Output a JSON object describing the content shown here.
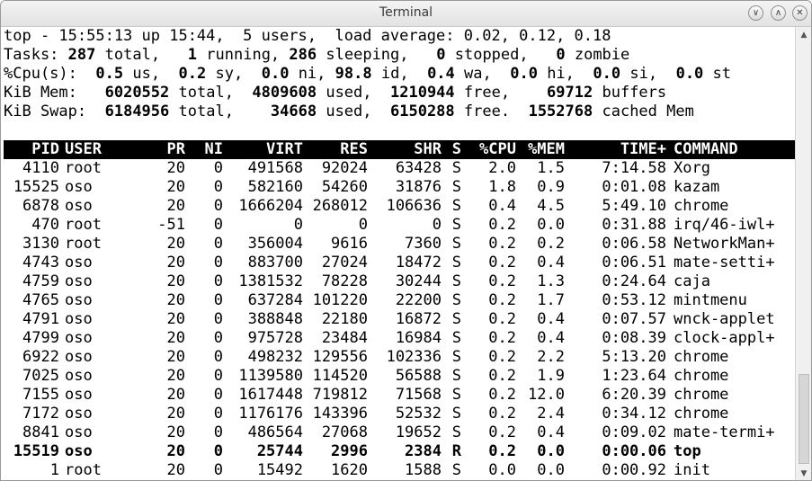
{
  "window": {
    "title": "Terminal"
  },
  "summary": {
    "line1": "top - 15:55:13 up 15:44,  5 users,  load average: 0.02, 0.12, 0.18",
    "tasks": {
      "label": "Tasks:",
      "total": "287",
      "total_label": "total,",
      "running": "1",
      "running_label": "running,",
      "sleeping": "286",
      "sleeping_label": "sleeping,",
      "stopped": "0",
      "stopped_label": "stopped,",
      "zombie": "0",
      "zombie_label": "zombie"
    },
    "cpu": {
      "label": "%Cpu(s):",
      "us": "0.5",
      "us_label": "us,",
      "sy": "0.2",
      "sy_label": "sy,",
      "ni": "0.0",
      "ni_label": "ni,",
      "id": "98.8",
      "id_label": "id,",
      "wa": "0.4",
      "wa_label": "wa,",
      "hi": "0.0",
      "hi_label": "hi,",
      "si": "0.0",
      "si_label": "si,",
      "st": "0.0",
      "st_label": "st"
    },
    "mem": {
      "label": "KiB Mem:",
      "total": "6020552",
      "total_label": "total,",
      "used": "4809608",
      "used_label": "used,",
      "free": "1210944",
      "free_label": "free,",
      "buffers": "69712",
      "buffers_label": "buffers"
    },
    "swap": {
      "label": "KiB Swap:",
      "total": "6184956",
      "total_label": "total,",
      "used": "34668",
      "used_label": "used,",
      "free": "6150288",
      "free_label": "free.",
      "cached": "1552768",
      "cached_label": "cached Mem"
    }
  },
  "table": {
    "headers": {
      "pid": "PID",
      "user": "USER",
      "pr": "PR",
      "ni": "NI",
      "virt": "VIRT",
      "res": "RES",
      "shr": "SHR",
      "s": "S",
      "cpu": "%CPU",
      "mem": "%MEM",
      "time": "TIME+",
      "command": "COMMAND"
    },
    "rows": [
      {
        "pid": "4110",
        "user": "root",
        "pr": "20",
        "ni": "0",
        "virt": "491568",
        "res": "92024",
        "shr": "63428",
        "s": "S",
        "cpu": "2.0",
        "mem": "1.5",
        "time": "7:14.58",
        "command": "Xorg"
      },
      {
        "pid": "15525",
        "user": "oso",
        "pr": "20",
        "ni": "0",
        "virt": "582160",
        "res": "54260",
        "shr": "31876",
        "s": "S",
        "cpu": "1.8",
        "mem": "0.9",
        "time": "0:01.08",
        "command": "kazam"
      },
      {
        "pid": "6878",
        "user": "oso",
        "pr": "20",
        "ni": "0",
        "virt": "1666204",
        "res": "268012",
        "shr": "106636",
        "s": "S",
        "cpu": "0.4",
        "mem": "4.5",
        "time": "5:49.10",
        "command": "chrome"
      },
      {
        "pid": "470",
        "user": "root",
        "pr": "-51",
        "ni": "0",
        "virt": "0",
        "res": "0",
        "shr": "0",
        "s": "S",
        "cpu": "0.2",
        "mem": "0.0",
        "time": "0:31.88",
        "command": "irq/46-iwl+"
      },
      {
        "pid": "3130",
        "user": "root",
        "pr": "20",
        "ni": "0",
        "virt": "356004",
        "res": "9616",
        "shr": "7360",
        "s": "S",
        "cpu": "0.2",
        "mem": "0.2",
        "time": "0:06.58",
        "command": "NetworkMan+"
      },
      {
        "pid": "4743",
        "user": "oso",
        "pr": "20",
        "ni": "0",
        "virt": "883700",
        "res": "27024",
        "shr": "18472",
        "s": "S",
        "cpu": "0.2",
        "mem": "0.4",
        "time": "0:06.51",
        "command": "mate-setti+"
      },
      {
        "pid": "4759",
        "user": "oso",
        "pr": "20",
        "ni": "0",
        "virt": "1381532",
        "res": "78228",
        "shr": "30244",
        "s": "S",
        "cpu": "0.2",
        "mem": "1.3",
        "time": "0:24.64",
        "command": "caja"
      },
      {
        "pid": "4765",
        "user": "oso",
        "pr": "20",
        "ni": "0",
        "virt": "637284",
        "res": "101220",
        "shr": "22200",
        "s": "S",
        "cpu": "0.2",
        "mem": "1.7",
        "time": "0:53.12",
        "command": "mintmenu"
      },
      {
        "pid": "4791",
        "user": "oso",
        "pr": "20",
        "ni": "0",
        "virt": "388848",
        "res": "22180",
        "shr": "16872",
        "s": "S",
        "cpu": "0.2",
        "mem": "0.4",
        "time": "0:07.57",
        "command": "wnck-applet"
      },
      {
        "pid": "4799",
        "user": "oso",
        "pr": "20",
        "ni": "0",
        "virt": "975728",
        "res": "23484",
        "shr": "16984",
        "s": "S",
        "cpu": "0.2",
        "mem": "0.4",
        "time": "0:08.39",
        "command": "clock-appl+"
      },
      {
        "pid": "6922",
        "user": "oso",
        "pr": "20",
        "ni": "0",
        "virt": "498232",
        "res": "129556",
        "shr": "102336",
        "s": "S",
        "cpu": "0.2",
        "mem": "2.2",
        "time": "5:13.20",
        "command": "chrome"
      },
      {
        "pid": "7025",
        "user": "oso",
        "pr": "20",
        "ni": "0",
        "virt": "1139580",
        "res": "114520",
        "shr": "56588",
        "s": "S",
        "cpu": "0.2",
        "mem": "1.9",
        "time": "1:23.64",
        "command": "chrome"
      },
      {
        "pid": "7155",
        "user": "oso",
        "pr": "20",
        "ni": "0",
        "virt": "1617448",
        "res": "719812",
        "shr": "71568",
        "s": "S",
        "cpu": "0.2",
        "mem": "12.0",
        "time": "6:20.39",
        "command": "chrome"
      },
      {
        "pid": "7172",
        "user": "oso",
        "pr": "20",
        "ni": "0",
        "virt": "1176176",
        "res": "143396",
        "shr": "52532",
        "s": "S",
        "cpu": "0.2",
        "mem": "2.4",
        "time": "0:34.12",
        "command": "chrome"
      },
      {
        "pid": "8841",
        "user": "oso",
        "pr": "20",
        "ni": "0",
        "virt": "486564",
        "res": "27068",
        "shr": "19652",
        "s": "S",
        "cpu": "0.2",
        "mem": "0.4",
        "time": "0:09.02",
        "command": "mate-termi+"
      },
      {
        "pid": "15519",
        "user": "oso",
        "pr": "20",
        "ni": "0",
        "virt": "25744",
        "res": "2996",
        "shr": "2384",
        "s": "R",
        "cpu": "0.2",
        "mem": "0.0",
        "time": "0:00.06",
        "command": "top",
        "bold": true
      },
      {
        "pid": "1",
        "user": "root",
        "pr": "20",
        "ni": "0",
        "virt": "15492",
        "res": "1620",
        "shr": "1588",
        "s": "S",
        "cpu": "0.0",
        "mem": "0.0",
        "time": "0:00.92",
        "command": "init"
      }
    ]
  },
  "icons": {
    "minimize": "chevron-down-icon",
    "maximize": "chevron-up-icon",
    "close": "close-icon",
    "scroll_up": "arrow-up-icon",
    "scroll_down": "arrow-down-icon"
  }
}
